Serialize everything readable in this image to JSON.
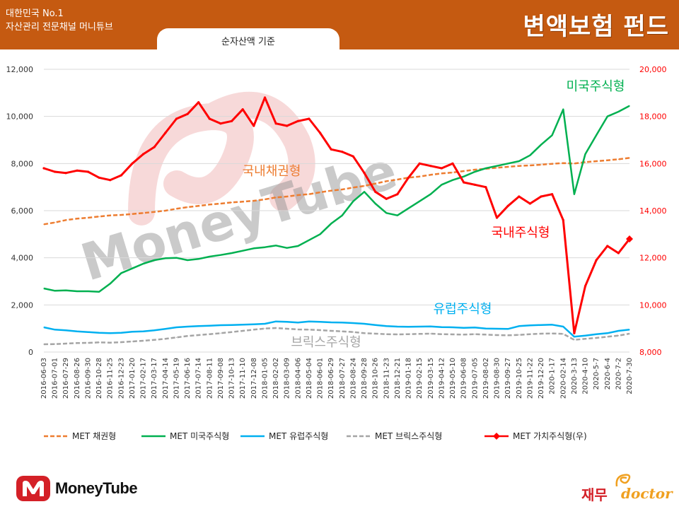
{
  "header": {
    "line1": "대한민국 No.1",
    "line2": "자산관리 전문채널 머니튜브",
    "title": "변액보험 펀드",
    "tab_label": "순자산액 기준"
  },
  "watermark": {
    "text": "MoneyTube"
  },
  "footer": {
    "brand": "MoneyTube",
    "partner_kr": "재무",
    "partner_en": "doctor"
  },
  "chart_data": {
    "type": "line",
    "title": "",
    "x_labels": [
      "2016-06-03",
      "2016-07-01",
      "2016-07-29",
      "2016-08-26",
      "2016-09-30",
      "2016-10-28",
      "2016-11-25",
      "2016-12-23",
      "2017-01-20",
      "2017-02-17",
      "2017-03-17",
      "2017-04-14",
      "2017-05-19",
      "2017-06-16",
      "2017-07-14",
      "2017-08-11",
      "2017-09-08",
      "2017-10-13",
      "2017-11-10",
      "2017-12-08",
      "2018-01-05",
      "2018-02-02",
      "2018-03-09",
      "2018-04-06",
      "2018-05-04",
      "2018-06-01",
      "2018-06-29",
      "2018-07-27",
      "2018-08-24",
      "2018-09-28",
      "2018-10-26",
      "2018-11-23",
      "2018-12-21",
      "2019-01-18",
      "2019-02-15",
      "2019-03-15",
      "2019-04-12",
      "2019-05-10",
      "2019-06-08",
      "2019-07-05",
      "2019-08-02",
      "2019-08-30",
      "2019-09-27",
      "2019-10-25",
      "2019-11-22",
      "2019-12-20",
      "2020-1-17",
      "2020-02-14",
      "2020-3-13",
      "2020-4-10",
      "2020-5-7",
      "2020-6-4",
      "2020-7-2",
      "2020-7-30"
    ],
    "y_left": {
      "ticks": [
        0,
        2000,
        4000,
        6000,
        8000,
        10000,
        12000
      ],
      "tick_labels": [
        "0",
        "2,000",
        "4,000",
        "6,000",
        "8,000",
        "10,000",
        "12,000"
      ],
      "range": [
        0,
        12000
      ]
    },
    "y_right": {
      "ticks": [
        8000,
        10000,
        12000,
        14000,
        16000,
        18000,
        20000
      ],
      "tick_labels": [
        "8,000",
        "10,000",
        "12,000",
        "14,000",
        "16,000",
        "18,000",
        "20,000"
      ],
      "range": [
        8000,
        20000
      ],
      "color": "#ff0000"
    },
    "grid": "horizontal",
    "legend_position": "bottom",
    "series": [
      {
        "name": "MET 채권형",
        "axis": "left",
        "color": "#ed7d31",
        "style": "dashed",
        "values": [
          5420,
          5500,
          5600,
          5660,
          5700,
          5750,
          5800,
          5820,
          5860,
          5900,
          5950,
          6000,
          6080,
          6150,
          6200,
          6260,
          6300,
          6350,
          6380,
          6420,
          6480,
          6560,
          6600,
          6660,
          6700,
          6780,
          6850,
          6900,
          6980,
          7050,
          7150,
          7250,
          7320,
          7400,
          7450,
          7520,
          7580,
          7620,
          7680,
          7740,
          7780,
          7820,
          7860,
          7900,
          7920,
          7950,
          7990,
          8020,
          8000,
          8060,
          8100,
          8140,
          8180,
          8240
        ]
      },
      {
        "name": "MET 미국주식형",
        "axis": "left",
        "color": "#00b050",
        "style": "solid",
        "values": [
          2700,
          2600,
          2620,
          2580,
          2580,
          2560,
          2900,
          3350,
          3550,
          3750,
          3900,
          3980,
          4000,
          3900,
          3950,
          4050,
          4120,
          4200,
          4300,
          4400,
          4450,
          4520,
          4420,
          4500,
          4750,
          5000,
          5450,
          5800,
          6400,
          6800,
          6300,
          5900,
          5800,
          6100,
          6400,
          6700,
          7100,
          7300,
          7450,
          7650,
          7800,
          7900,
          8000,
          8100,
          8350,
          8800,
          9200,
          10300,
          6700,
          8400,
          9200,
          10000,
          10200,
          10450
        ]
      },
      {
        "name": "MET 유럽주식형",
        "axis": "left",
        "color": "#00b0f0",
        "style": "solid",
        "values": [
          1050,
          950,
          920,
          880,
          850,
          820,
          800,
          820,
          860,
          880,
          920,
          980,
          1050,
          1080,
          1100,
          1120,
          1140,
          1150,
          1160,
          1180,
          1200,
          1300,
          1280,
          1250,
          1300,
          1280,
          1260,
          1250,
          1230,
          1200,
          1150,
          1100,
          1080,
          1070,
          1080,
          1090,
          1060,
          1050,
          1030,
          1040,
          1000,
          990,
          980,
          1100,
          1130,
          1150,
          1160,
          1080,
          650,
          700,
          760,
          800,
          900,
          950
        ]
      },
      {
        "name": "MET 브릭스주식형",
        "axis": "left",
        "color": "#a5a5a5",
        "style": "dashed",
        "values": [
          330,
          340,
          360,
          380,
          390,
          410,
          400,
          420,
          450,
          480,
          520,
          560,
          620,
          680,
          720,
          760,
          800,
          850,
          900,
          950,
          1000,
          1020,
          990,
          960,
          950,
          930,
          900,
          880,
          850,
          800,
          780,
          760,
          750,
          760,
          770,
          780,
          760,
          750,
          740,
          760,
          740,
          720,
          710,
          730,
          760,
          780,
          790,
          770,
          520,
          560,
          600,
          650,
          700,
          780
        ]
      },
      {
        "name": "MET 가치주식형(우)",
        "axis": "right",
        "color": "#ff0000",
        "style": "solid-marker",
        "values": [
          15800,
          15650,
          15600,
          15700,
          15650,
          15400,
          15300,
          15500,
          16000,
          16400,
          16700,
          17300,
          17900,
          18100,
          18600,
          17900,
          17700,
          17800,
          18300,
          17600,
          18800,
          17700,
          17600,
          17800,
          17900,
          17300,
          16600,
          16500,
          16300,
          15600,
          14800,
          14500,
          14700,
          15400,
          16000,
          15900,
          15800,
          16000,
          15200,
          15100,
          15000,
          13700,
          14200,
          14600,
          14300,
          14600,
          14700,
          13600,
          8800,
          10800,
          11900,
          12500,
          12200,
          12800
        ]
      }
    ],
    "annotations": [
      {
        "text": "국내채권형",
        "color": "#ed7d31"
      },
      {
        "text": "미국주식형",
        "color": "#00b050"
      },
      {
        "text": "국내주식형",
        "color": "#ff0000"
      },
      {
        "text": "유럽주식형",
        "color": "#00b0f0"
      },
      {
        "text": "브릭스주식형",
        "color": "#a5a5a5"
      }
    ]
  }
}
